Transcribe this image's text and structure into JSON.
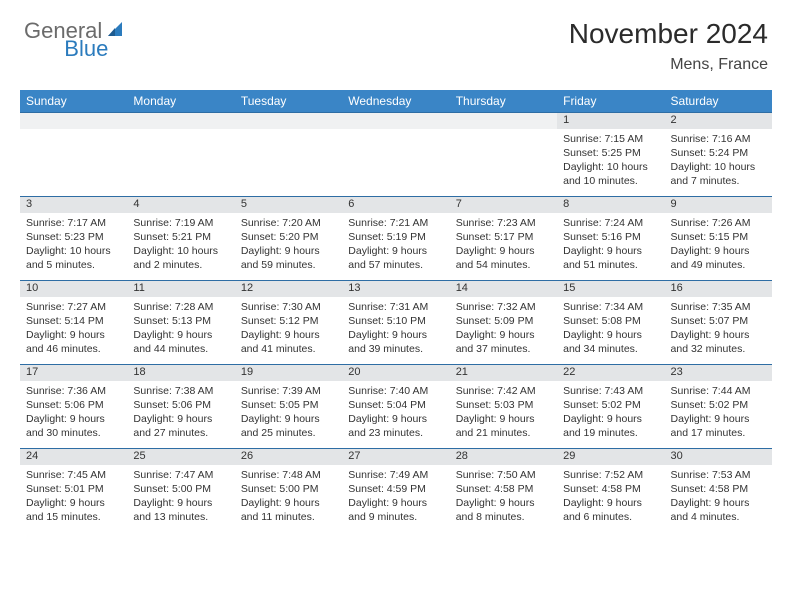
{
  "brand": {
    "part1": "General",
    "part2": "Blue"
  },
  "title": "November 2024",
  "location": "Mens, France",
  "dayHeaders": [
    "Sunday",
    "Monday",
    "Tuesday",
    "Wednesday",
    "Thursday",
    "Friday",
    "Saturday"
  ],
  "colors": {
    "headerBg": "#3a85c6",
    "headerText": "#ffffff",
    "dayNumBg": "#e3e5e7",
    "rowBorder": "#2e6da4",
    "logoGray": "#6b6b6b",
    "logoBlue": "#2b7bbd"
  },
  "weeks": [
    [
      {
        "empty": true
      },
      {
        "empty": true
      },
      {
        "empty": true
      },
      {
        "empty": true
      },
      {
        "empty": true
      },
      {
        "num": "1",
        "sunrise": "Sunrise: 7:15 AM",
        "sunset": "Sunset: 5:25 PM",
        "daylight1": "Daylight: 10 hours",
        "daylight2": "and 10 minutes."
      },
      {
        "num": "2",
        "sunrise": "Sunrise: 7:16 AM",
        "sunset": "Sunset: 5:24 PM",
        "daylight1": "Daylight: 10 hours",
        "daylight2": "and 7 minutes."
      }
    ],
    [
      {
        "num": "3",
        "sunrise": "Sunrise: 7:17 AM",
        "sunset": "Sunset: 5:23 PM",
        "daylight1": "Daylight: 10 hours",
        "daylight2": "and 5 minutes."
      },
      {
        "num": "4",
        "sunrise": "Sunrise: 7:19 AM",
        "sunset": "Sunset: 5:21 PM",
        "daylight1": "Daylight: 10 hours",
        "daylight2": "and 2 minutes."
      },
      {
        "num": "5",
        "sunrise": "Sunrise: 7:20 AM",
        "sunset": "Sunset: 5:20 PM",
        "daylight1": "Daylight: 9 hours",
        "daylight2": "and 59 minutes."
      },
      {
        "num": "6",
        "sunrise": "Sunrise: 7:21 AM",
        "sunset": "Sunset: 5:19 PM",
        "daylight1": "Daylight: 9 hours",
        "daylight2": "and 57 minutes."
      },
      {
        "num": "7",
        "sunrise": "Sunrise: 7:23 AM",
        "sunset": "Sunset: 5:17 PM",
        "daylight1": "Daylight: 9 hours",
        "daylight2": "and 54 minutes."
      },
      {
        "num": "8",
        "sunrise": "Sunrise: 7:24 AM",
        "sunset": "Sunset: 5:16 PM",
        "daylight1": "Daylight: 9 hours",
        "daylight2": "and 51 minutes."
      },
      {
        "num": "9",
        "sunrise": "Sunrise: 7:26 AM",
        "sunset": "Sunset: 5:15 PM",
        "daylight1": "Daylight: 9 hours",
        "daylight2": "and 49 minutes."
      }
    ],
    [
      {
        "num": "10",
        "sunrise": "Sunrise: 7:27 AM",
        "sunset": "Sunset: 5:14 PM",
        "daylight1": "Daylight: 9 hours",
        "daylight2": "and 46 minutes."
      },
      {
        "num": "11",
        "sunrise": "Sunrise: 7:28 AM",
        "sunset": "Sunset: 5:13 PM",
        "daylight1": "Daylight: 9 hours",
        "daylight2": "and 44 minutes."
      },
      {
        "num": "12",
        "sunrise": "Sunrise: 7:30 AM",
        "sunset": "Sunset: 5:12 PM",
        "daylight1": "Daylight: 9 hours",
        "daylight2": "and 41 minutes."
      },
      {
        "num": "13",
        "sunrise": "Sunrise: 7:31 AM",
        "sunset": "Sunset: 5:10 PM",
        "daylight1": "Daylight: 9 hours",
        "daylight2": "and 39 minutes."
      },
      {
        "num": "14",
        "sunrise": "Sunrise: 7:32 AM",
        "sunset": "Sunset: 5:09 PM",
        "daylight1": "Daylight: 9 hours",
        "daylight2": "and 37 minutes."
      },
      {
        "num": "15",
        "sunrise": "Sunrise: 7:34 AM",
        "sunset": "Sunset: 5:08 PM",
        "daylight1": "Daylight: 9 hours",
        "daylight2": "and 34 minutes."
      },
      {
        "num": "16",
        "sunrise": "Sunrise: 7:35 AM",
        "sunset": "Sunset: 5:07 PM",
        "daylight1": "Daylight: 9 hours",
        "daylight2": "and 32 minutes."
      }
    ],
    [
      {
        "num": "17",
        "sunrise": "Sunrise: 7:36 AM",
        "sunset": "Sunset: 5:06 PM",
        "daylight1": "Daylight: 9 hours",
        "daylight2": "and 30 minutes."
      },
      {
        "num": "18",
        "sunrise": "Sunrise: 7:38 AM",
        "sunset": "Sunset: 5:06 PM",
        "daylight1": "Daylight: 9 hours",
        "daylight2": "and 27 minutes."
      },
      {
        "num": "19",
        "sunrise": "Sunrise: 7:39 AM",
        "sunset": "Sunset: 5:05 PM",
        "daylight1": "Daylight: 9 hours",
        "daylight2": "and 25 minutes."
      },
      {
        "num": "20",
        "sunrise": "Sunrise: 7:40 AM",
        "sunset": "Sunset: 5:04 PM",
        "daylight1": "Daylight: 9 hours",
        "daylight2": "and 23 minutes."
      },
      {
        "num": "21",
        "sunrise": "Sunrise: 7:42 AM",
        "sunset": "Sunset: 5:03 PM",
        "daylight1": "Daylight: 9 hours",
        "daylight2": "and 21 minutes."
      },
      {
        "num": "22",
        "sunrise": "Sunrise: 7:43 AM",
        "sunset": "Sunset: 5:02 PM",
        "daylight1": "Daylight: 9 hours",
        "daylight2": "and 19 minutes."
      },
      {
        "num": "23",
        "sunrise": "Sunrise: 7:44 AM",
        "sunset": "Sunset: 5:02 PM",
        "daylight1": "Daylight: 9 hours",
        "daylight2": "and 17 minutes."
      }
    ],
    [
      {
        "num": "24",
        "sunrise": "Sunrise: 7:45 AM",
        "sunset": "Sunset: 5:01 PM",
        "daylight1": "Daylight: 9 hours",
        "daylight2": "and 15 minutes."
      },
      {
        "num": "25",
        "sunrise": "Sunrise: 7:47 AM",
        "sunset": "Sunset: 5:00 PM",
        "daylight1": "Daylight: 9 hours",
        "daylight2": "and 13 minutes."
      },
      {
        "num": "26",
        "sunrise": "Sunrise: 7:48 AM",
        "sunset": "Sunset: 5:00 PM",
        "daylight1": "Daylight: 9 hours",
        "daylight2": "and 11 minutes."
      },
      {
        "num": "27",
        "sunrise": "Sunrise: 7:49 AM",
        "sunset": "Sunset: 4:59 PM",
        "daylight1": "Daylight: 9 hours",
        "daylight2": "and 9 minutes."
      },
      {
        "num": "28",
        "sunrise": "Sunrise: 7:50 AM",
        "sunset": "Sunset: 4:58 PM",
        "daylight1": "Daylight: 9 hours",
        "daylight2": "and 8 minutes."
      },
      {
        "num": "29",
        "sunrise": "Sunrise: 7:52 AM",
        "sunset": "Sunset: 4:58 PM",
        "daylight1": "Daylight: 9 hours",
        "daylight2": "and 6 minutes."
      },
      {
        "num": "30",
        "sunrise": "Sunrise: 7:53 AM",
        "sunset": "Sunset: 4:58 PM",
        "daylight1": "Daylight: 9 hours",
        "daylight2": "and 4 minutes."
      }
    ]
  ]
}
